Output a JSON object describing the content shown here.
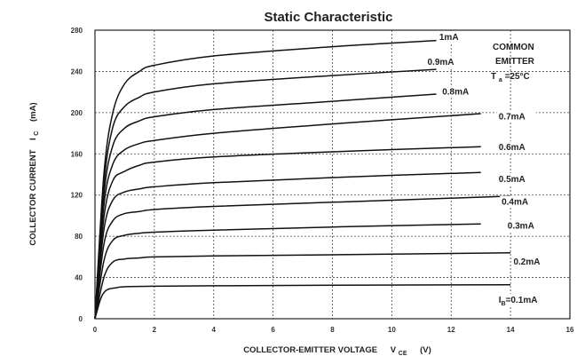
{
  "chart_data": {
    "type": "line",
    "title": "Static Characteristic",
    "xlabel": "COLLECTOR-EMITTER VOLTAGE",
    "xlabel_symbol": "V",
    "xlabel_subscript": "CE",
    "xlabel_unit": "(V)",
    "ylabel": "COLLECTOR CURRENT",
    "ylabel_symbol": "I",
    "ylabel_subscript": "C",
    "ylabel_unit": "(mA)",
    "xlim": [
      0,
      16
    ],
    "ylim": [
      0,
      280
    ],
    "xticks": [
      0,
      2,
      4,
      6,
      8,
      10,
      12,
      14,
      16
    ],
    "yticks": [
      0,
      40,
      80,
      120,
      160,
      200,
      240,
      280
    ],
    "grid": true,
    "annotation": {
      "line1": "COMMON",
      "line2": "EMITTER",
      "line3_symbol": "T",
      "line3_subscript": "a",
      "line3_rest": "=25°C"
    },
    "series": [
      {
        "name": "1mA",
        "x": [
          0,
          0.3,
          0.6,
          1,
          1.5,
          2,
          4,
          8,
          11.5
        ],
        "y": [
          0,
          140,
          200,
          228,
          240,
          246,
          255,
          264,
          270
        ],
        "label_x": 11.6,
        "label_y": 274
      },
      {
        "name": "0.9mA",
        "x": [
          0,
          0.3,
          0.6,
          1,
          1.5,
          2,
          4,
          8,
          11.5
        ],
        "y": [
          0,
          130,
          186,
          206,
          215,
          220,
          228,
          236,
          242
        ],
        "label_x": 11.2,
        "label_y": 250
      },
      {
        "name": "0.8mA",
        "x": [
          0,
          0.3,
          0.6,
          1,
          1.5,
          2,
          4,
          8,
          11.5
        ],
        "y": [
          0,
          120,
          168,
          185,
          192,
          196,
          203,
          211,
          218
        ],
        "label_x": 11.7,
        "label_y": 221
      },
      {
        "name": "0.7mA",
        "x": [
          0,
          0.3,
          0.6,
          1,
          1.5,
          2,
          4,
          8,
          13
        ],
        "y": [
          0,
          110,
          150,
          164,
          170,
          173,
          180,
          189,
          199
        ],
        "label_x": 13.6,
        "label_y": 197
      },
      {
        "name": "0.6mA",
        "x": [
          0,
          0.3,
          0.6,
          1,
          1.5,
          2,
          4,
          8,
          13
        ],
        "y": [
          0,
          98,
          134,
          143,
          149,
          152,
          157,
          162,
          167
        ],
        "label_x": 13.6,
        "label_y": 167
      },
      {
        "name": "0.5mA",
        "x": [
          0,
          0.3,
          0.6,
          1,
          1.5,
          2,
          4,
          8,
          13
        ],
        "y": [
          0,
          86,
          115,
          123,
          126,
          128,
          132,
          137,
          142
        ],
        "label_x": 13.6,
        "label_y": 136
      },
      {
        "name": "0.4mA",
        "x": [
          0,
          0.3,
          0.6,
          1,
          1.5,
          2,
          4,
          8,
          14
        ],
        "y": [
          0,
          72,
          95,
          102,
          104,
          106,
          109,
          113,
          119
        ],
        "label_x": 13.7,
        "label_y": 114
      },
      {
        "name": "0.3mA",
        "x": [
          0,
          0.3,
          0.6,
          1,
          1.5,
          2,
          4,
          8,
          13
        ],
        "y": [
          0,
          56,
          76,
          81,
          83,
          84,
          86,
          89,
          92
        ],
        "label_x": 13.9,
        "label_y": 91
      },
      {
        "name": "0.2mA",
        "x": [
          0,
          0.3,
          0.6,
          1,
          1.5,
          2,
          4,
          8,
          14
        ],
        "y": [
          0,
          40,
          55,
          58,
          59,
          60,
          61,
          62,
          64
        ],
        "label_x": 14.1,
        "label_y": 56
      },
      {
        "name": "0.1mA",
        "x": [
          0,
          0.2,
          0.4,
          0.7,
          1,
          2,
          4,
          8,
          14
        ],
        "y": [
          0,
          20,
          28,
          30,
          31,
          31.5,
          32,
          32.5,
          33
        ],
        "label_x": 13.6,
        "label_y": 19,
        "label_symbol": "I",
        "label_subscript": "B",
        "label_rest": "=0.1mA"
      }
    ]
  }
}
